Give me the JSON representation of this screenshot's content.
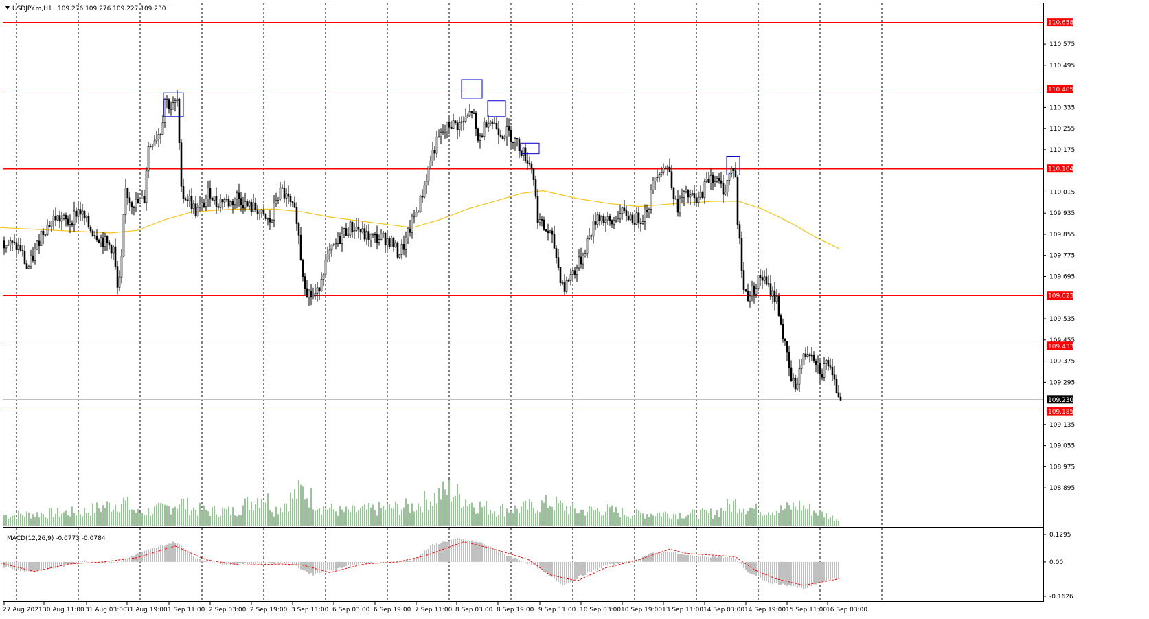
{
  "header": {
    "symbol": "USDJPY.m,H1",
    "ohlc": "109.276 109.276 109.227 109.230",
    "dropdown_icon": "triangle-down-icon"
  },
  "macd": {
    "label": "MACD(12,26,9) -0.0773 -0.0784",
    "axis_labels": [
      "0.1295",
      "0.00",
      "-0.1626"
    ],
    "axis_values": [
      0.1295,
      0.0,
      -0.1626
    ],
    "histogram_color": "#c0c0c0",
    "signal_color": "#ff0000"
  },
  "colors": {
    "background": "#ffffff",
    "grid": "#000000",
    "level_line": "#ff0000",
    "level_label_bg": "#ff0000",
    "current_label_bg": "#000000",
    "candle": "#000000",
    "ma": "#f5c518",
    "volume": "#2e8b2e",
    "box": "#0000cc"
  },
  "price_axis": {
    "ticks": [
      "110.575",
      "110.495",
      "110.335",
      "110.255",
      "110.175",
      "110.015",
      "109.935",
      "109.855",
      "109.775",
      "109.695",
      "109.535",
      "109.455",
      "109.375",
      "109.295",
      "109.135",
      "109.055",
      "108.975",
      "108.895"
    ]
  },
  "levels": [
    {
      "label": "110.658",
      "value": 110.658
    },
    {
      "label": "110.405",
      "value": 110.405
    },
    {
      "label": "110.104",
      "value": 110.104
    },
    {
      "label": "109.623",
      "value": 109.623
    },
    {
      "label": "109.433",
      "value": 109.433
    },
    {
      "label": "109.185",
      "value": 109.185
    }
  ],
  "current_price": {
    "label": "109.230",
    "value": 109.23
  },
  "time_axis": {
    "labels": [
      "27 Aug 2021",
      "30 Aug 11:00",
      "31 Aug 03:00",
      "31 Aug 19:00",
      "1 Sep 11:00",
      "2 Sep 03:00",
      "2 Sep 19:00",
      "3 Sep 11:00",
      "6 Sep 03:00",
      "6 Sep 19:00",
      "7 Sep 11:00",
      "8 Sep 03:00",
      "8 Sep 19:00",
      "9 Sep 11:00",
      "10 Sep 03:00",
      "10 Sep 19:00",
      "13 Sep 11:00",
      "14 Sep 03:00",
      "14 Sep 19:00",
      "15 Sep 11:00",
      "16 Sep 03:00"
    ]
  },
  "chart_data": {
    "type": "candlestick",
    "symbol": "USDJPY.m",
    "timeframe": "H1",
    "y_range": [
      108.885,
      110.7
    ],
    "price_path": [
      [
        0,
        109.84
      ],
      [
        10,
        109.82
      ],
      [
        30,
        109.8
      ],
      [
        40,
        109.72
      ],
      [
        50,
        109.78
      ],
      [
        60,
        109.86
      ],
      [
        80,
        109.92
      ],
      [
        100,
        109.9
      ],
      [
        115,
        109.95
      ],
      [
        130,
        109.88
      ],
      [
        150,
        109.83
      ],
      [
        165,
        109.8
      ],
      [
        172,
        109.62
      ],
      [
        178,
        109.78
      ],
      [
        182,
        110.03
      ],
      [
        190,
        109.98
      ],
      [
        200,
        109.97
      ],
      [
        210,
        109.99
      ],
      [
        215,
        110.18
      ],
      [
        225,
        110.22
      ],
      [
        235,
        110.25
      ],
      [
        240,
        110.37
      ],
      [
        250,
        110.33
      ],
      [
        258,
        110.36
      ],
      [
        262,
        110.12
      ],
      [
        266,
        110.0
      ],
      [
        275,
        109.99
      ],
      [
        285,
        109.94
      ],
      [
        295,
        109.96
      ],
      [
        305,
        110.02
      ],
      [
        315,
        109.97
      ],
      [
        325,
        109.99
      ],
      [
        335,
        109.97
      ],
      [
        345,
        110.0
      ],
      [
        360,
        109.96
      ],
      [
        375,
        109.95
      ],
      [
        385,
        109.91
      ],
      [
        395,
        109.9
      ],
      [
        402,
        109.99
      ],
      [
        410,
        110.02
      ],
      [
        420,
        109.98
      ],
      [
        432,
        109.92
      ],
      [
        440,
        109.72
      ],
      [
        447,
        109.64
      ],
      [
        455,
        109.62
      ],
      [
        462,
        109.63
      ],
      [
        470,
        109.72
      ],
      [
        480,
        109.78
      ],
      [
        490,
        109.82
      ],
      [
        500,
        109.86
      ],
      [
        510,
        109.88
      ],
      [
        520,
        109.88
      ],
      [
        530,
        109.85
      ],
      [
        545,
        109.84
      ],
      [
        560,
        109.84
      ],
      [
        572,
        109.82
      ],
      [
        580,
        109.78
      ],
      [
        590,
        109.82
      ],
      [
        600,
        109.9
      ],
      [
        612,
        109.98
      ],
      [
        620,
        110.06
      ],
      [
        628,
        110.15
      ],
      [
        636,
        110.2
      ],
      [
        645,
        110.24
      ],
      [
        655,
        110.27
      ],
      [
        670,
        110.27
      ],
      [
        680,
        110.29
      ],
      [
        688,
        110.33
      ],
      [
        695,
        110.2
      ],
      [
        702,
        110.24
      ],
      [
        710,
        110.3
      ],
      [
        720,
        110.27
      ],
      [
        730,
        110.24
      ],
      [
        740,
        110.24
      ],
      [
        750,
        110.21
      ],
      [
        760,
        110.17
      ],
      [
        768,
        110.14
      ],
      [
        776,
        110.1
      ],
      [
        782,
        109.93
      ],
      [
        790,
        109.88
      ],
      [
        800,
        109.86
      ],
      [
        808,
        109.8
      ],
      [
        815,
        109.7
      ],
      [
        822,
        109.65
      ],
      [
        830,
        109.7
      ],
      [
        840,
        109.73
      ],
      [
        848,
        109.77
      ],
      [
        855,
        109.83
      ],
      [
        862,
        109.87
      ],
      [
        870,
        109.93
      ],
      [
        880,
        109.91
      ],
      [
        890,
        109.89
      ],
      [
        900,
        109.93
      ],
      [
        912,
        109.93
      ],
      [
        925,
        109.91
      ],
      [
        935,
        109.92
      ],
      [
        945,
        109.97
      ],
      [
        955,
        110.09
      ],
      [
        965,
        110.11
      ],
      [
        975,
        110.1
      ],
      [
        985,
        109.95
      ],
      [
        995,
        110.0
      ],
      [
        1005,
        110.0
      ],
      [
        1015,
        109.97
      ],
      [
        1025,
        110.03
      ],
      [
        1035,
        110.08
      ],
      [
        1045,
        110.05
      ],
      [
        1055,
        110.02
      ],
      [
        1062,
        110.08
      ],
      [
        1070,
        110.12
      ],
      [
        1074,
        109.9
      ],
      [
        1078,
        109.8
      ],
      [
        1082,
        109.65
      ],
      [
        1090,
        109.62
      ],
      [
        1100,
        109.66
      ],
      [
        1108,
        109.7
      ],
      [
        1116,
        109.66
      ],
      [
        1125,
        109.63
      ],
      [
        1132,
        109.6
      ],
      [
        1138,
        109.5
      ],
      [
        1145,
        109.4
      ],
      [
        1152,
        109.3
      ],
      [
        1158,
        109.28
      ],
      [
        1165,
        109.35
      ],
      [
        1172,
        109.4
      ],
      [
        1180,
        109.42
      ],
      [
        1188,
        109.38
      ],
      [
        1196,
        109.33
      ],
      [
        1205,
        109.38
      ],
      [
        1212,
        109.3
      ],
      [
        1220,
        109.26
      ],
      [
        1225,
        109.23
      ]
    ],
    "ma_path": [
      [
        0,
        109.88
      ],
      [
        80,
        109.87
      ],
      [
        160,
        109.86
      ],
      [
        200,
        109.87
      ],
      [
        240,
        109.91
      ],
      [
        280,
        109.94
      ],
      [
        340,
        109.95
      ],
      [
        400,
        109.95
      ],
      [
        440,
        109.94
      ],
      [
        480,
        109.92
      ],
      [
        540,
        109.9
      ],
      [
        600,
        109.88
      ],
      [
        640,
        109.91
      ],
      [
        680,
        109.95
      ],
      [
        720,
        109.98
      ],
      [
        760,
        110.01
      ],
      [
        790,
        110.02
      ],
      [
        840,
        109.99
      ],
      [
        890,
        109.97
      ],
      [
        930,
        109.96
      ],
      [
        980,
        109.97
      ],
      [
        1040,
        109.98
      ],
      [
        1075,
        109.98
      ],
      [
        1110,
        109.95
      ],
      [
        1150,
        109.9
      ],
      [
        1190,
        109.84
      ],
      [
        1222,
        109.8
      ]
    ],
    "analysis_boxes": [
      {
        "x": [
          238,
          267
        ],
        "y": [
          110.3,
          110.39
        ]
      },
      {
        "x": [
          672,
          702
        ],
        "y": [
          110.37,
          110.44
        ]
      },
      {
        "x": [
          710,
          736
        ],
        "y": [
          110.3,
          110.36
        ]
      },
      {
        "x": [
          758,
          785
        ],
        "y": [
          110.16,
          110.2
        ]
      },
      {
        "x": [
          1058,
          1077
        ],
        "y": [
          110.08,
          110.15
        ]
      }
    ],
    "macd_hist_path": [
      [
        0,
        -0.02
      ],
      [
        40,
        -0.045
      ],
      [
        80,
        -0.03
      ],
      [
        120,
        0.005
      ],
      [
        170,
        -0.005
      ],
      [
        210,
        0.05
      ],
      [
        255,
        0.095
      ],
      [
        290,
        0.01
      ],
      [
        330,
        -0.01
      ],
      [
        380,
        -0.008
      ],
      [
        420,
        -0.002
      ],
      [
        455,
        -0.06
      ],
      [
        480,
        -0.04
      ],
      [
        520,
        -0.01
      ],
      [
        560,
        0.0
      ],
      [
        600,
        0.005
      ],
      [
        630,
        0.08
      ],
      [
        665,
        0.11
      ],
      [
        700,
        0.09
      ],
      [
        740,
        0.03
      ],
      [
        780,
        -0.02
      ],
      [
        820,
        -0.11
      ],
      [
        850,
        -0.06
      ],
      [
        880,
        -0.02
      ],
      [
        920,
        0.005
      ],
      [
        950,
        0.04
      ],
      [
        975,
        0.05
      ],
      [
        1000,
        0.03
      ],
      [
        1040,
        0.025
      ],
      [
        1070,
        0.02
      ],
      [
        1090,
        -0.05
      ],
      [
        1120,
        -0.1
      ],
      [
        1150,
        -0.11
      ],
      [
        1170,
        -0.13
      ],
      [
        1200,
        -0.09
      ],
      [
        1222,
        -0.078
      ]
    ],
    "macd_signal_path": [
      [
        0,
        -0.005
      ],
      [
        50,
        -0.045
      ],
      [
        100,
        -0.01
      ],
      [
        150,
        0.0
      ],
      [
        200,
        0.02
      ],
      [
        255,
        0.075
      ],
      [
        300,
        0.01
      ],
      [
        350,
        -0.015
      ],
      [
        410,
        -0.01
      ],
      [
        440,
        -0.015
      ],
      [
        480,
        -0.05
      ],
      [
        530,
        -0.01
      ],
      [
        580,
        0.0
      ],
      [
        620,
        0.03
      ],
      [
        675,
        0.095
      ],
      [
        720,
        0.06
      ],
      [
        770,
        0.01
      ],
      [
        800,
        -0.06
      ],
      [
        840,
        -0.09
      ],
      [
        880,
        -0.03
      ],
      [
        930,
        0.01
      ],
      [
        975,
        0.06
      ],
      [
        1000,
        0.04
      ],
      [
        1070,
        0.025
      ],
      [
        1100,
        -0.04
      ],
      [
        1130,
        -0.08
      ],
      [
        1170,
        -0.11
      ],
      [
        1222,
        -0.08
      ]
    ],
    "volume_path": [
      [
        0,
        18
      ],
      [
        40,
        20
      ],
      [
        80,
        22
      ],
      [
        120,
        24
      ],
      [
        160,
        36
      ],
      [
        180,
        42
      ],
      [
        200,
        22
      ],
      [
        240,
        30
      ],
      [
        262,
        42
      ],
      [
        280,
        30
      ],
      [
        300,
        26
      ],
      [
        340,
        25
      ],
      [
        384,
        55
      ],
      [
        400,
        28
      ],
      [
        440,
        62
      ],
      [
        470,
        32
      ],
      [
        500,
        24
      ],
      [
        560,
        30
      ],
      [
        600,
        34
      ],
      [
        655,
        62
      ],
      [
        690,
        38
      ],
      [
        720,
        28
      ],
      [
        760,
        30
      ],
      [
        802,
        40
      ],
      [
        840,
        26
      ],
      [
        880,
        28
      ],
      [
        920,
        20
      ],
      [
        960,
        22
      ],
      [
        1000,
        20
      ],
      [
        1040,
        22
      ],
      [
        1072,
        40
      ],
      [
        1100,
        28
      ],
      [
        1140,
        28
      ],
      [
        1162,
        36
      ],
      [
        1190,
        24
      ],
      [
        1222,
        10
      ]
    ]
  }
}
